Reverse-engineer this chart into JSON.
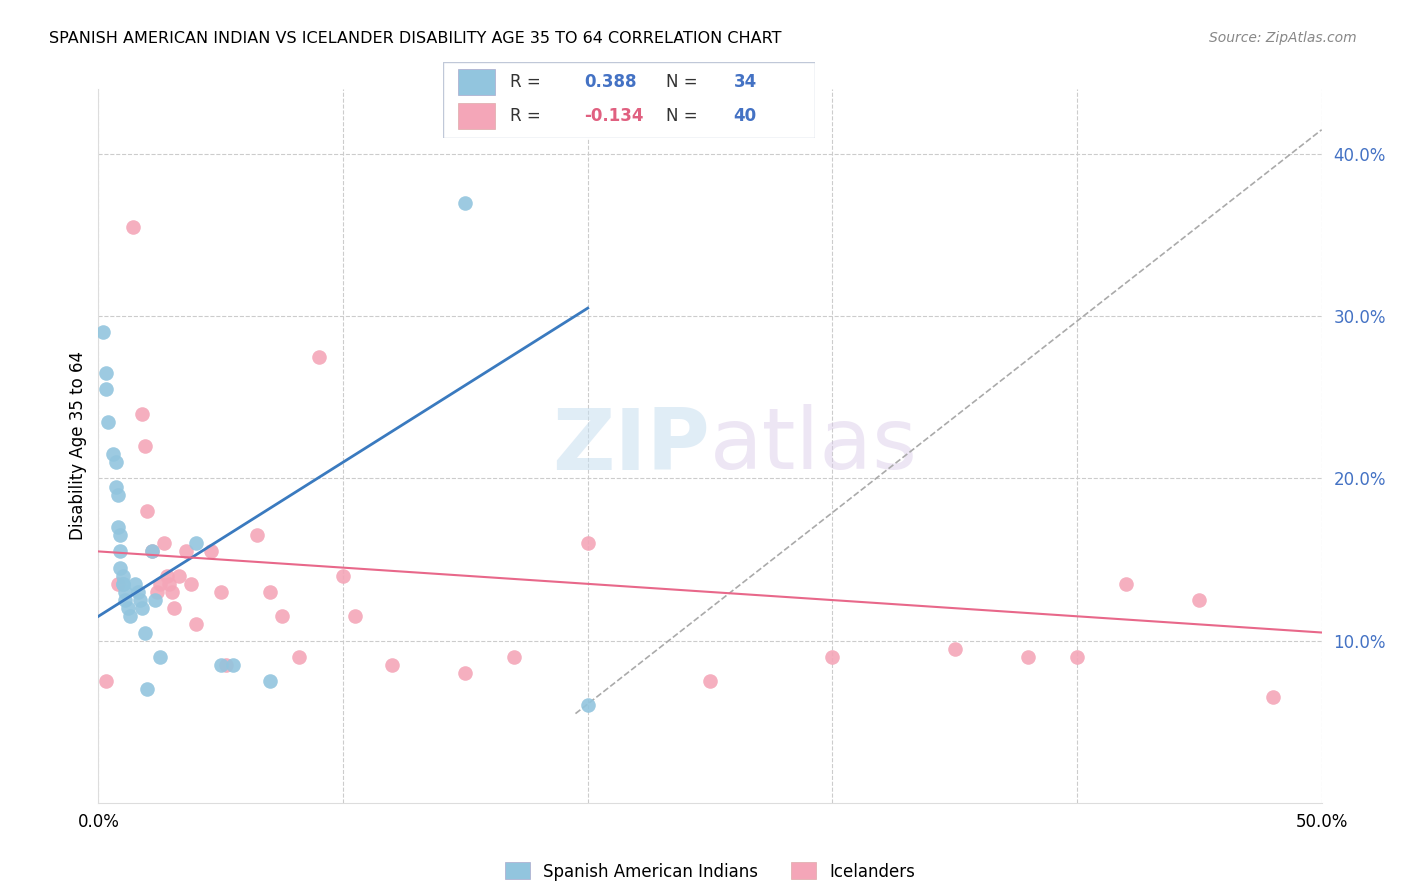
{
  "title": "SPANISH AMERICAN INDIAN VS ICELANDER DISABILITY AGE 35 TO 64 CORRELATION CHART",
  "source": "Source: ZipAtlas.com",
  "ylabel": "Disability Age 35 to 64",
  "y_ticks": [
    0.1,
    0.2,
    0.3,
    0.4
  ],
  "y_tick_labels": [
    "10.0%",
    "20.0%",
    "30.0%",
    "40.0%"
  ],
  "xlim": [
    0.0,
    0.5
  ],
  "ylim": [
    0.0,
    0.44
  ],
  "r_blue": 0.388,
  "n_blue": 34,
  "r_pink": -0.134,
  "n_pink": 40,
  "legend_label_blue": "Spanish American Indians",
  "legend_label_pink": "Icelanders",
  "blue_color": "#92c5de",
  "pink_color": "#f4a6b8",
  "blue_line_color": "#3a7abf",
  "pink_line_color": "#e8688a",
  "watermark_zip": "ZIP",
  "watermark_atlas": "atlas",
  "blue_line_x": [
    0.0,
    0.2
  ],
  "blue_line_y": [
    0.115,
    0.305
  ],
  "pink_line_x": [
    0.0,
    0.5
  ],
  "pink_line_y": [
    0.155,
    0.105
  ],
  "dash_line_x": [
    0.195,
    0.5
  ],
  "dash_line_y": [
    0.055,
    0.415
  ],
  "blue_scatter_x": [
    0.002,
    0.003,
    0.003,
    0.004,
    0.006,
    0.007,
    0.007,
    0.008,
    0.008,
    0.009,
    0.009,
    0.009,
    0.01,
    0.01,
    0.01,
    0.011,
    0.011,
    0.012,
    0.013,
    0.015,
    0.016,
    0.017,
    0.018,
    0.019,
    0.02,
    0.022,
    0.023,
    0.025,
    0.04,
    0.05,
    0.055,
    0.07,
    0.15,
    0.2
  ],
  "blue_scatter_y": [
    0.29,
    0.265,
    0.255,
    0.235,
    0.215,
    0.21,
    0.195,
    0.19,
    0.17,
    0.165,
    0.155,
    0.145,
    0.14,
    0.135,
    0.135,
    0.13,
    0.125,
    0.12,
    0.115,
    0.135,
    0.13,
    0.125,
    0.12,
    0.105,
    0.07,
    0.155,
    0.125,
    0.09,
    0.16,
    0.085,
    0.085,
    0.075,
    0.37,
    0.06
  ],
  "pink_scatter_x": [
    0.003,
    0.008,
    0.014,
    0.018,
    0.019,
    0.02,
    0.022,
    0.024,
    0.025,
    0.027,
    0.028,
    0.029,
    0.03,
    0.031,
    0.033,
    0.036,
    0.038,
    0.04,
    0.046,
    0.05,
    0.052,
    0.065,
    0.07,
    0.075,
    0.082,
    0.09,
    0.1,
    0.105,
    0.12,
    0.15,
    0.17,
    0.2,
    0.25,
    0.3,
    0.35,
    0.38,
    0.4,
    0.42,
    0.45,
    0.48
  ],
  "pink_scatter_y": [
    0.075,
    0.135,
    0.355,
    0.24,
    0.22,
    0.18,
    0.155,
    0.13,
    0.135,
    0.16,
    0.14,
    0.135,
    0.13,
    0.12,
    0.14,
    0.155,
    0.135,
    0.11,
    0.155,
    0.13,
    0.085,
    0.165,
    0.13,
    0.115,
    0.09,
    0.275,
    0.14,
    0.115,
    0.085,
    0.08,
    0.09,
    0.16,
    0.075,
    0.09,
    0.095,
    0.09,
    0.09,
    0.135,
    0.125,
    0.065
  ]
}
